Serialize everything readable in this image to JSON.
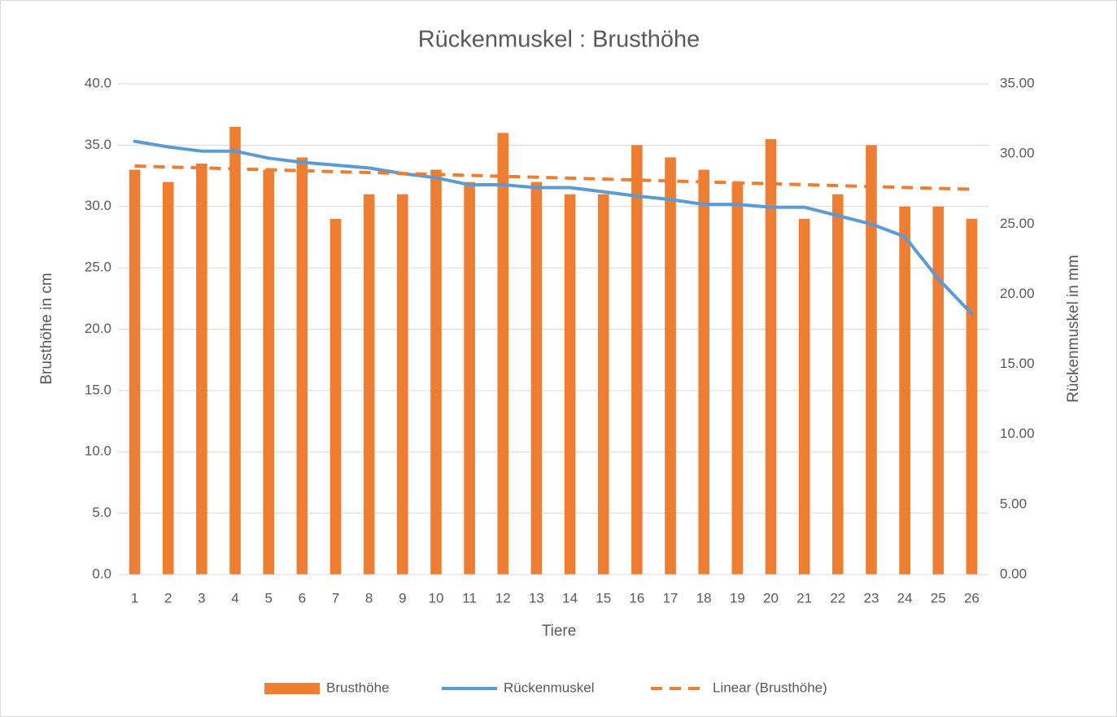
{
  "chart_data": {
    "type": "bar-line",
    "title": "Rückenmuskel : Brusthöhe",
    "x_label": "Tiere",
    "y_label": "Brusthöhe in cm",
    "y2_label": "Rückenmuskel in mm",
    "categories": [
      "1",
      "2",
      "3",
      "4",
      "5",
      "6",
      "7",
      "8",
      "9",
      "10",
      "11",
      "12",
      "13",
      "14",
      "15",
      "16",
      "17",
      "18",
      "19",
      "20",
      "21",
      "22",
      "23",
      "24",
      "25",
      "26"
    ],
    "series": [
      {
        "name": "Brusthöhe",
        "type": "bar",
        "color": "#ed7d31",
        "axis": "y",
        "values": [
          33,
          32,
          33.5,
          36.5,
          33,
          34,
          29,
          31,
          31,
          33,
          32,
          36,
          32,
          31,
          31,
          35,
          34,
          33,
          32,
          35.5,
          29,
          31,
          35,
          30,
          30,
          29
        ]
      },
      {
        "name": "Rückenmuskel",
        "type": "line",
        "color": "#5b9bd5",
        "axis": "y2",
        "values": [
          30.9,
          30.5,
          30.2,
          30.2,
          29.7,
          29.4,
          29.2,
          29.0,
          28.6,
          28.3,
          27.8,
          27.8,
          27.6,
          27.6,
          27.3,
          27.0,
          26.75,
          26.4,
          26.4,
          26.2,
          26.2,
          25.6,
          25.0,
          24.1,
          21.1,
          18.6
        ]
      },
      {
        "name": "Linear (Brusthöhe)",
        "type": "trend",
        "color": "#ed7d31",
        "axis": "y",
        "values": [
          33.3,
          33.22,
          33.15,
          33.07,
          33.0,
          32.92,
          32.84,
          32.77,
          32.69,
          32.62,
          32.54,
          32.46,
          32.39,
          32.31,
          32.24,
          32.16,
          32.08,
          32.01,
          31.93,
          31.86,
          31.78,
          31.7,
          31.63,
          31.55,
          31.48,
          31.4
        ]
      }
    ],
    "ylim": [
      0,
      40
    ],
    "yticks": [
      {
        "value": 0,
        "label": "0.0"
      },
      {
        "value": 5,
        "label": "5.0"
      },
      {
        "value": 10,
        "label": "10.0"
      },
      {
        "value": 15,
        "label": "15.0"
      },
      {
        "value": 20,
        "label": "20.0"
      },
      {
        "value": 25,
        "label": "25.0"
      },
      {
        "value": 30,
        "label": "30.0"
      },
      {
        "value": 35,
        "label": "35.0"
      },
      {
        "value": 40,
        "label": "40.0"
      }
    ],
    "y2lim": [
      0,
      35
    ],
    "y2ticks": [
      {
        "value": 0,
        "label": "0.00"
      },
      {
        "value": 5,
        "label": "5.00"
      },
      {
        "value": 10,
        "label": "10.00"
      },
      {
        "value": 15,
        "label": "15.00"
      },
      {
        "value": 20,
        "label": "20.00"
      },
      {
        "value": 25,
        "label": "25.00"
      },
      {
        "value": 30,
        "label": "30.00"
      },
      {
        "value": 35,
        "label": "35.00"
      }
    ],
    "grid": true,
    "legend": "bottom"
  }
}
